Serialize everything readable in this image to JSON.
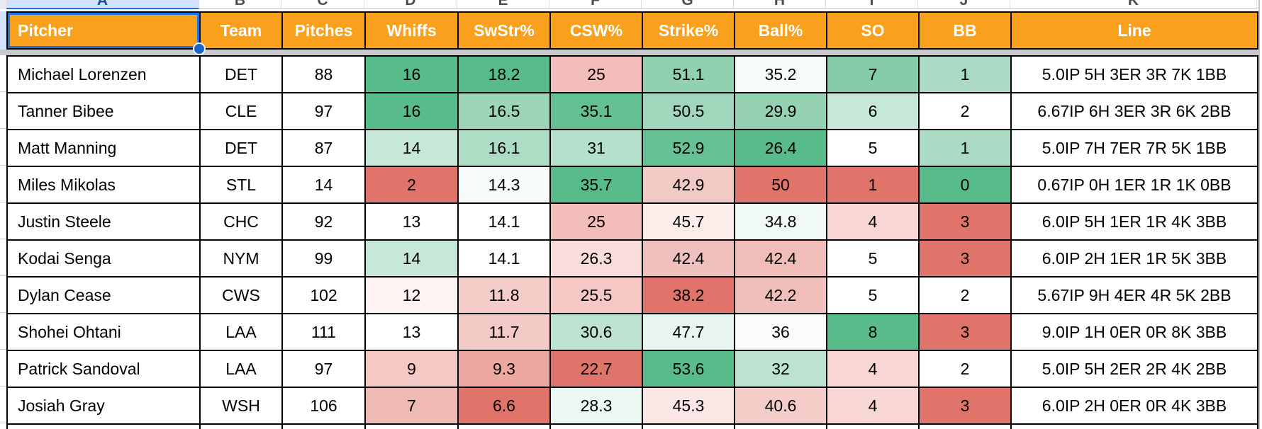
{
  "sheet": {
    "column_letters": [
      "A",
      "B",
      "C",
      "D",
      "E",
      "F",
      "G",
      "H",
      "I",
      "J",
      "K"
    ],
    "columns": [
      {
        "key": "pitcher",
        "label": "Pitcher"
      },
      {
        "key": "team",
        "label": "Team"
      },
      {
        "key": "pitches",
        "label": "Pitches"
      },
      {
        "key": "whiffs",
        "label": "Whiffs"
      },
      {
        "key": "swstr",
        "label": "SwStr%"
      },
      {
        "key": "csw",
        "label": "CSW%"
      },
      {
        "key": "strike",
        "label": "Strike%"
      },
      {
        "key": "ball",
        "label": "Ball%"
      },
      {
        "key": "so",
        "label": "SO"
      },
      {
        "key": "bb",
        "label": "BB"
      },
      {
        "key": "line",
        "label": "Line"
      }
    ],
    "rows": [
      {
        "pitcher": "Michael Lorenzen",
        "team": "DET",
        "pitches": "88",
        "whiffs": "16",
        "swstr": "18.2",
        "csw": "25",
        "strike": "51.1",
        "ball": "35.2",
        "so": "7",
        "bb": "1",
        "line": "5.0IP 5H 3ER 3R 7K 1BB",
        "colors": {
          "whiffs": "#57BB8A",
          "swstr": "#57BB8A",
          "csw": "#F3BDB9",
          "strike": "#91D1B1",
          "ball": "#F7FBF9",
          "so": "#84CBA7",
          "bb": "#ABDBC4"
        }
      },
      {
        "pitcher": "Tanner Bibee",
        "team": "CLE",
        "pitches": "97",
        "whiffs": "16",
        "swstr": "16.5",
        "csw": "35.1",
        "strike": "50.5",
        "ball": "29.9",
        "so": "6",
        "bb": "2",
        "line": "6.67IP 6H 3ER 3R 6K 2BB",
        "colors": {
          "whiffs": "#57BB8A",
          "swstr": "#9DD5B9",
          "csw": "#63C091",
          "strike": "#A0D7BC",
          "ball": "#94D2B3",
          "so": "#C7E8D6",
          "bb": "#FFFFFF"
        }
      },
      {
        "pitcher": "Matt Manning",
        "team": "DET",
        "pitches": "87",
        "whiffs": "14",
        "swstr": "16.1",
        "csw": "31",
        "strike": "52.9",
        "ball": "26.4",
        "so": "5",
        "bb": "1",
        "line": "5.0IP 7H 7ER 7R 5K 1BB",
        "colors": {
          "whiffs": "#C7E8D6",
          "swstr": "#ADDCC4",
          "csw": "#B5E0CB",
          "strike": "#66C295",
          "ball": "#57BB8A",
          "so": "#FFFFFF",
          "bb": "#ABDBC4"
        }
      },
      {
        "pitcher": "Miles Mikolas",
        "team": "STL",
        "pitches": "14",
        "whiffs": "2",
        "swstr": "14.3",
        "csw": "35.7",
        "strike": "42.9",
        "ball": "50",
        "so": "1",
        "bb": "0",
        "line": "0.67IP 0H 1ER 1R 1K 0BB",
        "colors": {
          "whiffs": "#E0736A",
          "swstr": "#F7FBF9",
          "csw": "#57BB8A",
          "strike": "#F1C9C5",
          "ball": "#E0736A",
          "so": "#E0736A",
          "bb": "#57BB8A"
        }
      },
      {
        "pitcher": "Justin Steele",
        "team": "CHC",
        "pitches": "92",
        "whiffs": "13",
        "swstr": "14.1",
        "csw": "25",
        "strike": "45.7",
        "ball": "34.8",
        "so": "4",
        "bb": "3",
        "line": "6.0IP 5H 1ER 1R 4K 3BB",
        "colors": {
          "whiffs": "#FFFFFF",
          "swstr": "#FFFFFF",
          "csw": "#F3BDB9",
          "strike": "#FCEDEB",
          "ball": "#F0F9F4",
          "so": "#F7D6D3",
          "bb": "#E0736A"
        }
      },
      {
        "pitcher": "Kodai Senga",
        "team": "NYM",
        "pitches": "99",
        "whiffs": "14",
        "swstr": "14.1",
        "csw": "26.3",
        "strike": "42.4",
        "ball": "42.4",
        "so": "5",
        "bb": "3",
        "line": "6.0IP 2H 1ER 1R 5K 3BB",
        "colors": {
          "whiffs": "#C7E8D6",
          "swstr": "#FFFFFF",
          "csw": "#F9DDDA",
          "strike": "#EFC0BC",
          "ball": "#F0BDB9",
          "so": "#FFFFFF",
          "bb": "#E0736A"
        }
      },
      {
        "pitcher": "Dylan Cease",
        "team": "CWS",
        "pitches": "102",
        "whiffs": "12",
        "swstr": "11.8",
        "csw": "25.5",
        "strike": "38.2",
        "ball": "42.2",
        "so": "5",
        "bb": "2",
        "line": "5.67IP 9H 4ER 4R 5K 2BB",
        "colors": {
          "whiffs": "#FDF3F2",
          "swstr": "#F4CCC8",
          "csw": "#F6C8C5",
          "strike": "#E0736A",
          "ball": "#F1BFBB",
          "so": "#FFFFFF",
          "bb": "#FFFFFF"
        }
      },
      {
        "pitcher": "Shohei Ohtani",
        "team": "LAA",
        "pitches": "111",
        "whiffs": "13",
        "swstr": "11.7",
        "csw": "30.6",
        "strike": "47.7",
        "ball": "36",
        "so": "8",
        "bb": "3",
        "line": "9.0IP 1H 0ER 0R 8K 3BB",
        "colors": {
          "whiffs": "#FFFFFF",
          "swstr": "#F4CAC6",
          "csw": "#BDE4D0",
          "strike": "#E8F5EE",
          "ball": "#FEFBFB",
          "so": "#57BB8A",
          "bb": "#E0736A"
        }
      },
      {
        "pitcher": "Patrick Sandoval",
        "team": "LAA",
        "pitches": "97",
        "whiffs": "9",
        "swstr": "9.3",
        "csw": "22.7",
        "strike": "53.6",
        "ball": "32",
        "so": "4",
        "bb": "2",
        "line": "5.0IP 5H 2ER 2R 4K 2BB",
        "colors": {
          "whiffs": "#F4C9C6",
          "swstr": "#EEA8A2",
          "csw": "#E0736A",
          "strike": "#57BB8A",
          "ball": "#BCE3CF",
          "so": "#F7D6D3",
          "bb": "#FFFFFF"
        }
      },
      {
        "pitcher": "Josiah Gray",
        "team": "WSH",
        "pitches": "106",
        "whiffs": "7",
        "swstr": "6.6",
        "csw": "28.3",
        "strike": "45.3",
        "ball": "40.6",
        "so": "4",
        "bb": "3",
        "line": "6.0IP 2H 0ER 0R 4K 3BB",
        "colors": {
          "whiffs": "#EFB9B4",
          "swstr": "#E0736A",
          "csw": "#EBF7F1",
          "strike": "#FAE7E5",
          "ball": "#F4CDC9",
          "so": "#F7D6D3",
          "bb": "#E0736A"
        }
      }
    ],
    "theme": {
      "header_bg": "#F9A11C",
      "header_text": "#FFFFFF",
      "grid_border": "#000000",
      "selection_blue": "#1A73E8",
      "selected_letter_bg": "#D3E3FD",
      "divider_gray": "#C9CACB",
      "scale_green": "#57BB8A",
      "scale_red": "#E0736A",
      "scale_mid": "#FFFFFF"
    }
  }
}
